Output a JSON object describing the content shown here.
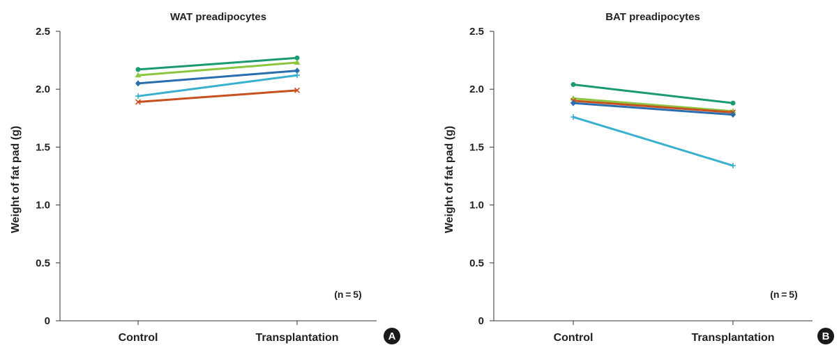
{
  "colors": {
    "s1": "#1a9a73",
    "s2": "#8cc63f",
    "s3": "#2a6eb0",
    "s4": "#3ab0d0",
    "s5": "#c8501e"
  },
  "chart_data": [
    {
      "panel": "A",
      "type": "line",
      "title": "WAT preadipocytes",
      "ylabel": "Weight of fat pad (g)",
      "categories": [
        "Control",
        "Transplantation"
      ],
      "ylim": [
        0,
        2.5
      ],
      "yticks": [
        "0",
        "0.5",
        "1.0",
        "1.5",
        "2.0",
        "2.5"
      ],
      "annotation": "(n = 5)",
      "grid": false,
      "series": [
        {
          "marker": "circle",
          "color_key": "s1",
          "values": [
            2.17,
            2.27
          ]
        },
        {
          "marker": "triangle",
          "color_key": "s2",
          "values": [
            2.12,
            2.23
          ]
        },
        {
          "marker": "diamond",
          "color_key": "s3",
          "values": [
            2.05,
            2.16
          ]
        },
        {
          "marker": "plus",
          "color_key": "s4",
          "values": [
            1.94,
            2.12
          ]
        },
        {
          "marker": "x",
          "color_key": "s5",
          "values": [
            1.89,
            1.99
          ]
        }
      ]
    },
    {
      "panel": "B",
      "type": "line",
      "title": "BAT preadipocytes",
      "ylabel": "Weight of fat pad (g)",
      "categories": [
        "Control",
        "Transplantation"
      ],
      "ylim": [
        0,
        2.5
      ],
      "yticks": [
        "0",
        "0.5",
        "1.0",
        "1.5",
        "2.0",
        "2.5"
      ],
      "annotation": "(n = 5)",
      "grid": false,
      "series": [
        {
          "marker": "circle",
          "color_key": "s1",
          "values": [
            2.04,
            1.88
          ]
        },
        {
          "marker": "triangle",
          "color_key": "s2",
          "values": [
            1.92,
            1.81
          ]
        },
        {
          "marker": "x",
          "color_key": "s5",
          "values": [
            1.9,
            1.8
          ]
        },
        {
          "marker": "diamond",
          "color_key": "s3",
          "values": [
            1.88,
            1.78
          ]
        },
        {
          "marker": "plus",
          "color_key": "s4",
          "values": [
            1.76,
            1.34
          ]
        }
      ]
    }
  ]
}
